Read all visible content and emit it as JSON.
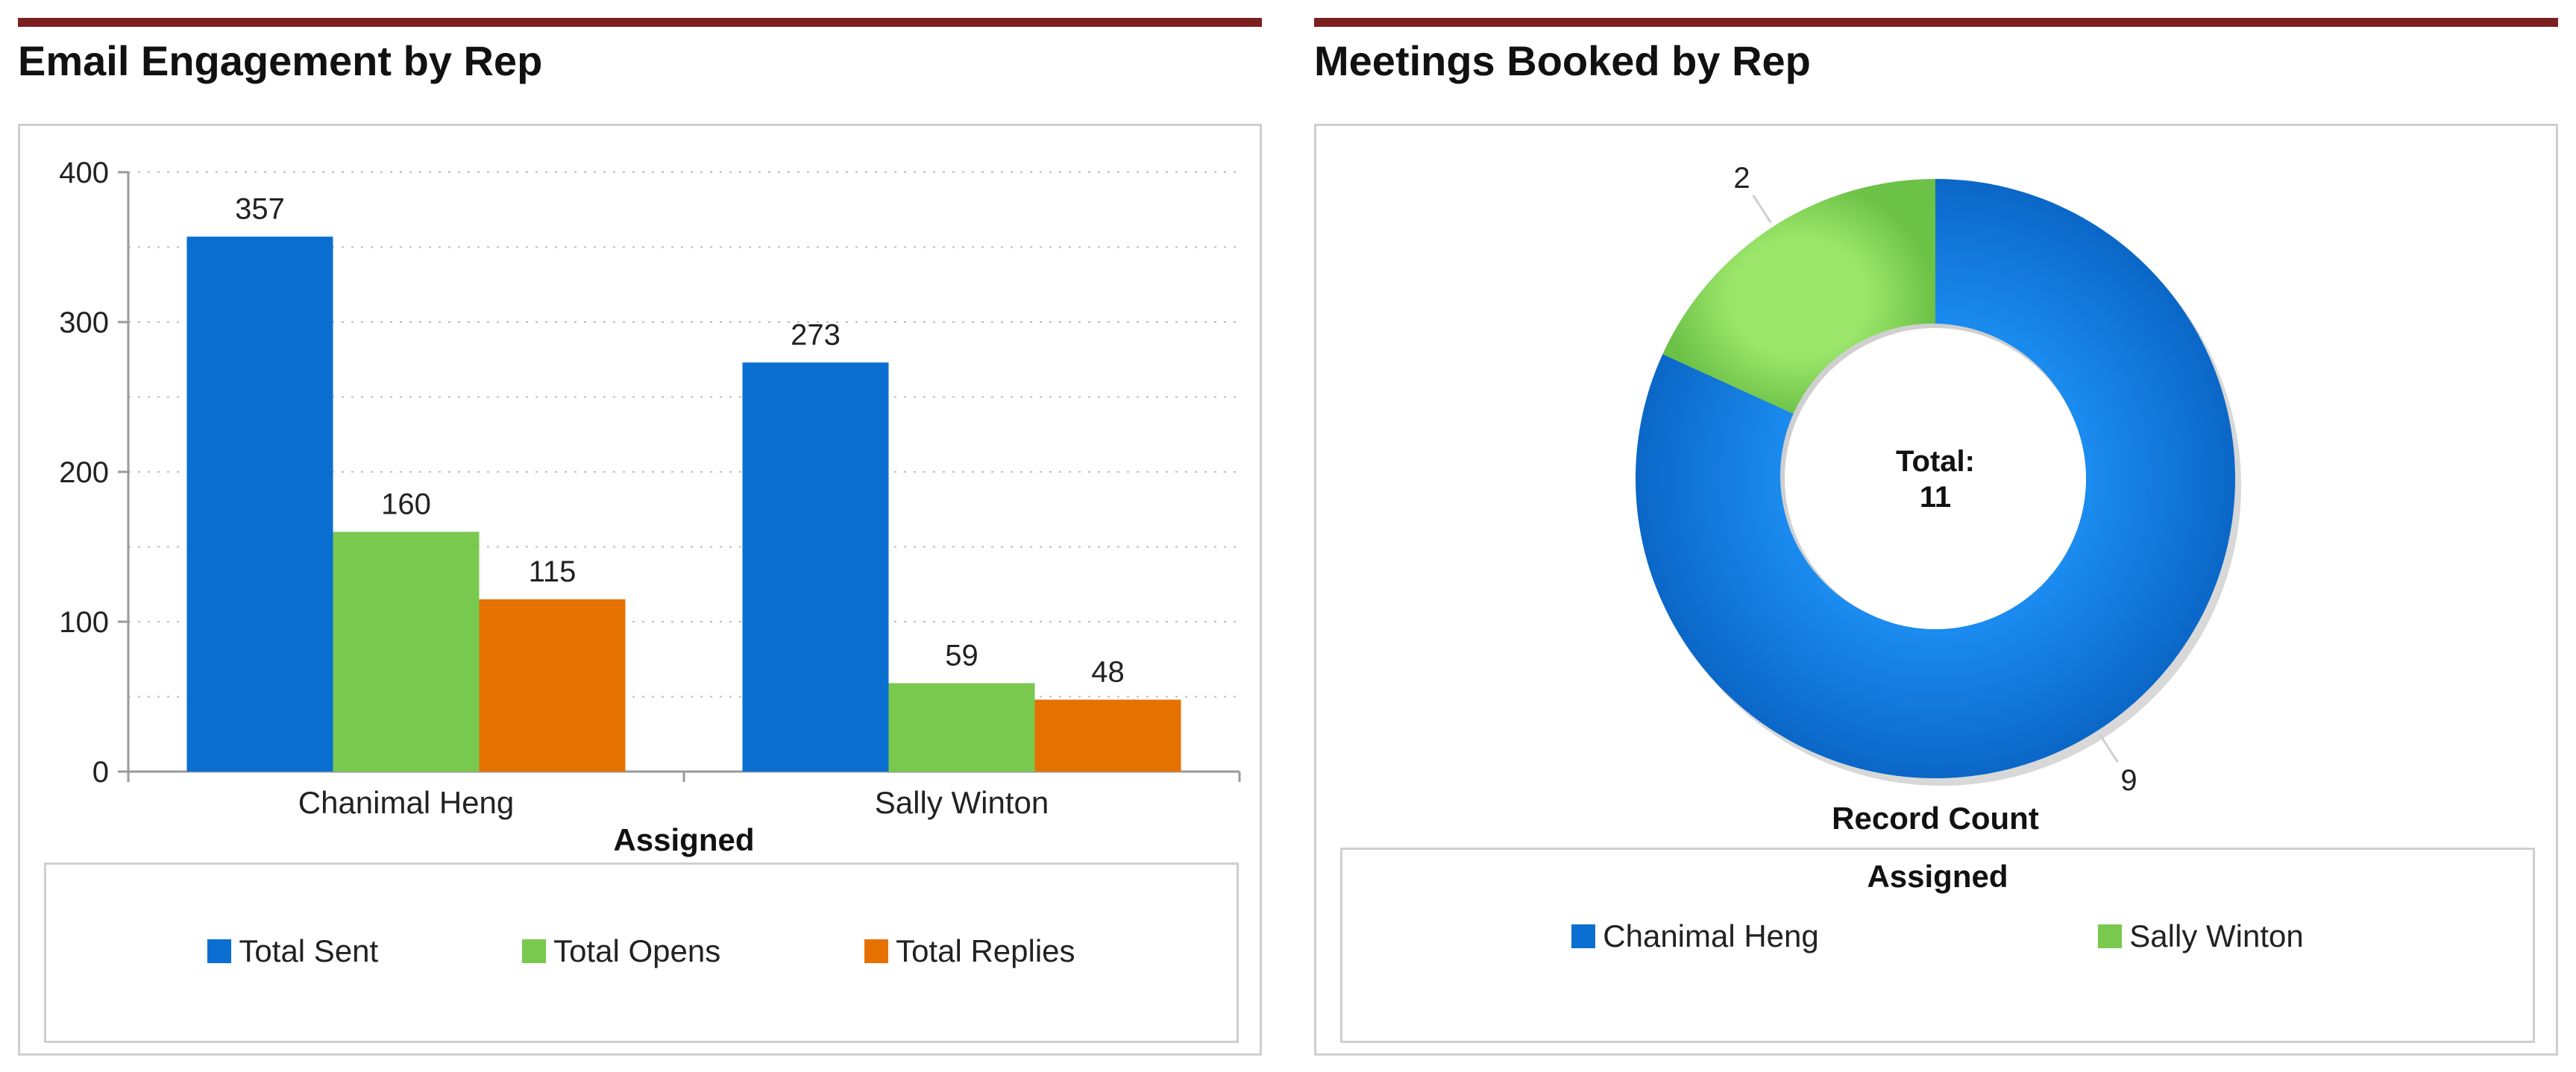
{
  "left_widget": {
    "title": "Email Engagement by Rep"
  },
  "right_widget": {
    "title": "Meetings Booked by Rep"
  },
  "colors": {
    "accent_bar": "#7b1f1f",
    "blue": "#0b6fd1",
    "green": "#79c94f",
    "orange": "#e57200",
    "grid": "#bdbdbd",
    "axis": "#9a9a9a"
  },
  "chart_data": [
    {
      "type": "bar",
      "title": "Email Engagement by Rep",
      "categories": [
        "Chanimal Heng",
        "Sally Winton"
      ],
      "series": [
        {
          "name": "Total Sent",
          "values": [
            357,
            273
          ],
          "color": "#0b6fd1"
        },
        {
          "name": "Total Opens",
          "values": [
            160,
            59
          ],
          "color": "#79c94f"
        },
        {
          "name": "Total Replies",
          "values": [
            115,
            48
          ],
          "color": "#e57200"
        }
      ],
      "xlabel": "Assigned",
      "ylabel": "",
      "ylim": [
        0,
        400
      ],
      "yticks": [
        "0",
        "100",
        "200",
        "300",
        "400"
      ],
      "data_labels": true,
      "grid": true,
      "legend": "bottom"
    },
    {
      "type": "pie",
      "title": "Meetings Booked by Rep",
      "donut": true,
      "labels": [
        "Chanimal Heng",
        "Sally Winton"
      ],
      "values": [
        9,
        2
      ],
      "colors": [
        "#0b6fd1",
        "#79c94f"
      ],
      "center_label": "Total:",
      "center_value": "11",
      "measure_label": "Record Count",
      "legend_title": "Assigned",
      "legend": "bottom"
    }
  ]
}
